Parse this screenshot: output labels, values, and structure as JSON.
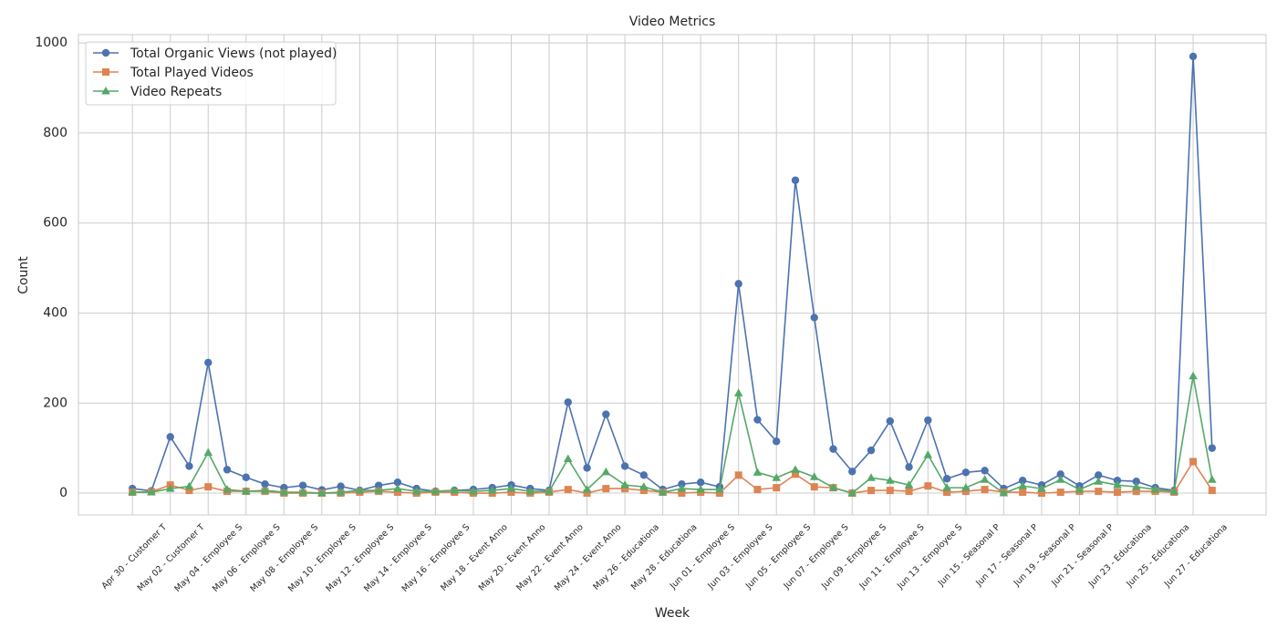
{
  "chart_data": {
    "type": "line",
    "title": "Video Metrics",
    "x_label": "Week",
    "y_label": "Count",
    "categories": [
      "Apr 30 - Customer T",
      null,
      "May 02 - Customer T",
      null,
      "May 04 - Employee S",
      null,
      "May 06 - Employee S",
      null,
      "May 08 - Employee S",
      null,
      "May 10 - Employee S",
      null,
      "May 12 - Employee S",
      null,
      "May 14 - Employee S",
      null,
      "May 16 - Employee S",
      null,
      "May 18 - Event Anno",
      null,
      "May 20 - Event Anno",
      null,
      "May 22 - Event Anno",
      null,
      "May 24 - Event Anno",
      null,
      "May 26 - Educationa",
      null,
      "May 28 - Educationa",
      null,
      "Jun 01 - Employee S",
      null,
      "Jun 03 - Employee S",
      null,
      "Jun 05 - Employee S",
      null,
      "Jun 07 - Employee S",
      null,
      "Jun 09 - Employee S",
      null,
      "Jun 11 - Employee S",
      null,
      "Jun 13 - Employee S",
      null,
      "Jun 15 - Seasonal P",
      null,
      "Jun 17 - Seasonal P",
      null,
      "Jun 19 - Seasonal P",
      null,
      "Jun 21 - Seasonal P",
      null,
      "Jun 23 - Educationa",
      null,
      "Jun 25 - Educationa",
      null,
      "Jun 27 - Educationa",
      null
    ],
    "series": [
      {
        "name": "Total Organic Views (not played)",
        "color": "#4c72b0",
        "marker": "circle",
        "values": [
          10,
          5,
          125,
          60,
          290,
          52,
          35,
          20,
          12,
          17,
          7,
          15,
          6,
          17,
          24,
          10,
          4,
          6,
          8,
          12,
          18,
          10,
          6,
          202,
          56,
          175,
          60,
          40,
          8,
          20,
          24,
          14,
          465,
          163,
          115,
          695,
          390,
          98,
          48,
          95,
          160,
          58,
          162,
          32,
          46,
          50,
          10,
          28,
          18,
          42,
          16,
          40,
          28,
          26,
          12,
          6,
          970,
          100
        ]
      },
      {
        "name": "Total Played Videos",
        "color": "#dd8452",
        "marker": "square",
        "values": [
          2,
          3,
          18,
          6,
          14,
          4,
          4,
          4,
          0,
          0,
          0,
          0,
          2,
          4,
          2,
          0,
          2,
          2,
          0,
          0,
          2,
          0,
          2,
          8,
          0,
          10,
          10,
          6,
          2,
          0,
          2,
          0,
          40,
          8,
          12,
          42,
          14,
          12,
          0,
          6,
          6,
          4,
          16,
          2,
          4,
          8,
          2,
          2,
          0,
          2,
          4,
          4,
          2,
          4,
          4,
          2,
          70,
          6
        ]
      },
      {
        "name": "Video Repeats",
        "color": "#55a868",
        "marker": "triangle",
        "values": [
          2,
          2,
          10,
          15,
          90,
          8,
          4,
          6,
          2,
          2,
          0,
          2,
          6,
          6,
          10,
          4,
          4,
          6,
          4,
          6,
          10,
          4,
          4,
          76,
          8,
          47,
          18,
          14,
          2,
          10,
          8,
          8,
          222,
          46,
          34,
          52,
          36,
          12,
          0,
          34,
          28,
          18,
          85,
          12,
          12,
          30,
          0,
          16,
          10,
          30,
          8,
          26,
          18,
          14,
          8,
          4,
          260,
          30
        ]
      }
    ],
    "ylim": [
      -48.5,
      1018.5
    ],
    "yticks": [
      0,
      200,
      400,
      600,
      800,
      1000
    ],
    "grid": true,
    "legend": "upper left"
  }
}
